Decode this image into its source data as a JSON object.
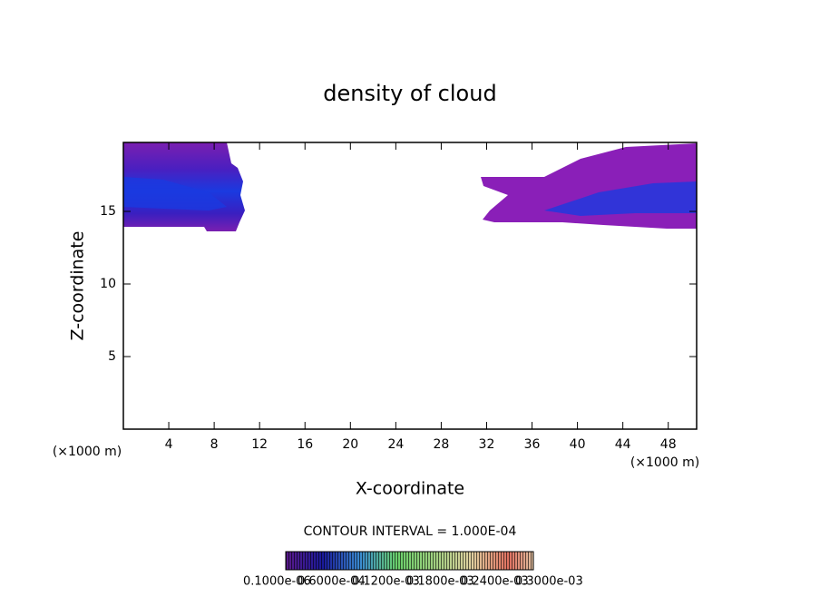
{
  "chart_data": {
    "type": "contour",
    "title": "density of cloud",
    "x_label": "X-coordinate",
    "y_label": "Z-coordinate",
    "x_unit": "(×1000 m)",
    "xlim": [
      0,
      50.5
    ],
    "xticks": [
      4,
      8,
      12,
      16,
      20,
      24,
      28,
      32,
      36,
      40,
      44,
      48
    ],
    "ylim": [
      0,
      19.75
    ],
    "yticks": [
      5,
      10,
      15
    ],
    "contour_interval": "CONTOUR INTERVAL = 1.000E-04",
    "colorbar_labels": [
      "0.1000e-06",
      "0.6000e-04",
      "0.1200e-03",
      "0.1800e-03",
      "0.2400e-03",
      "0.3000e-03"
    ]
  }
}
